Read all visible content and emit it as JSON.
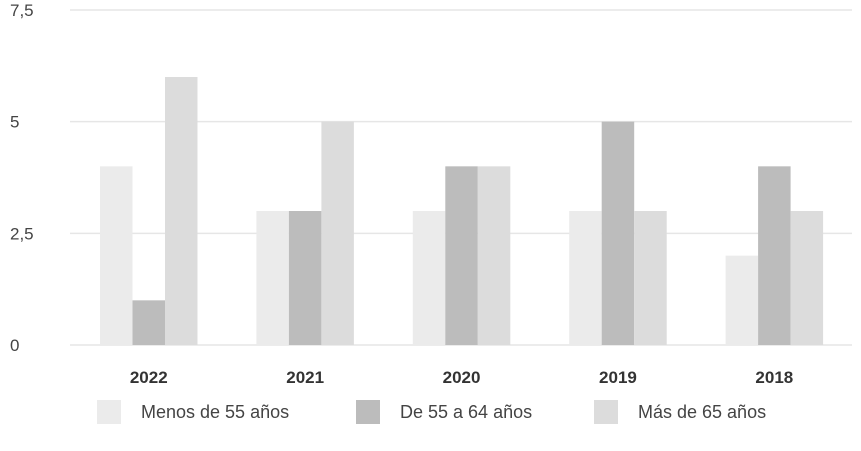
{
  "chart_data": {
    "type": "bar",
    "title": "",
    "xlabel": "",
    "ylabel": "",
    "categories": [
      "2022",
      "2021",
      "2020",
      "2019",
      "2018"
    ],
    "series": [
      {
        "name": "Menos de 55 años",
        "color": "#ebebeb",
        "values": [
          4,
          3,
          3,
          3,
          2
        ]
      },
      {
        "name": "De 55 a 64 años",
        "color": "#bcbcbc",
        "values": [
          1,
          3,
          4,
          5,
          4
        ]
      },
      {
        "name": "Más de 65 años",
        "color": "#dcdcdc",
        "values": [
          6,
          5,
          4,
          3,
          3
        ]
      }
    ],
    "ylim": [
      0,
      7.5
    ],
    "yticks": [
      0,
      2.5,
      5,
      7.5
    ],
    "ytick_labels": [
      "0",
      "2,5",
      "5",
      "7,5"
    ],
    "grid": true,
    "legend_position": "bottom",
    "gridline_color": "#e6e6e6"
  }
}
